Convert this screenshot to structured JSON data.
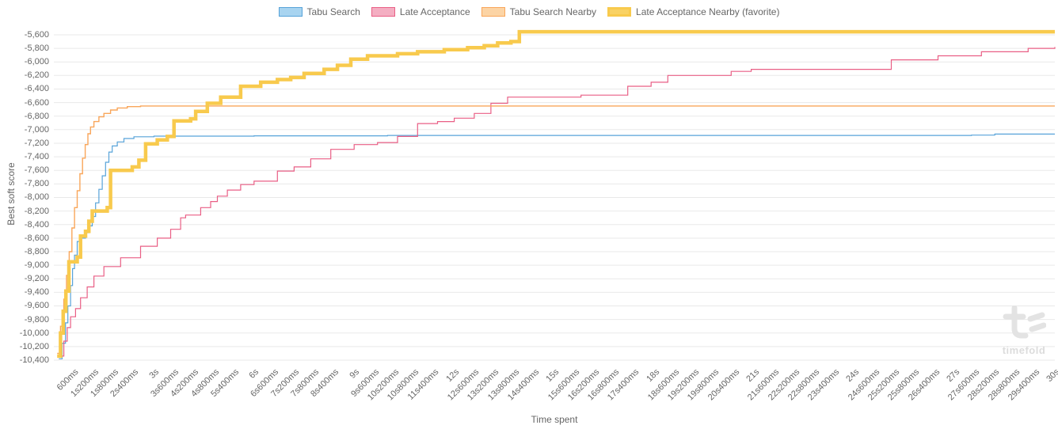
{
  "watermark": {
    "text": "timefold"
  },
  "chart_data": {
    "type": "line",
    "step": true,
    "title": "",
    "xlabel": "Time spent",
    "ylabel": "Best soft score",
    "legend_position": "top",
    "grid": true,
    "xlim_ms": [
      0,
      30000
    ],
    "ylim": [
      -10400,
      -5472
    ],
    "x_tick_interval_ms": 600,
    "x_tick_labels": [
      "600ms",
      "1s200ms",
      "1s800ms",
      "2s400ms",
      "3s",
      "3s600ms",
      "4s200ms",
      "4s800ms",
      "5s400ms",
      "6s",
      "6s600ms",
      "7s200ms",
      "7s800ms",
      "8s400ms",
      "9s",
      "9s600ms",
      "10s200ms",
      "10s800ms",
      "11s400ms",
      "12s",
      "12s600ms",
      "13s200ms",
      "13s800ms",
      "14s400ms",
      "15s",
      "15s600ms",
      "16s200ms",
      "16s800ms",
      "17s400ms",
      "18s",
      "18s600ms",
      "19s200ms",
      "19s800ms",
      "20s400ms",
      "21s",
      "21s600ms",
      "22s200ms",
      "22s800ms",
      "23s400ms",
      "24s",
      "24s600ms",
      "25s200ms",
      "25s800ms",
      "26s400ms",
      "27s",
      "27s600ms",
      "28s200ms",
      "28s800ms",
      "29s400ms",
      "30s"
    ],
    "y_ticks": [
      -5600,
      -5800,
      -6000,
      -6200,
      -6400,
      -6600,
      -6800,
      -7000,
      -7200,
      -7400,
      -7600,
      -7800,
      -8000,
      -8200,
      -8400,
      -8600,
      -8800,
      -9000,
      -9200,
      -9400,
      -9600,
      -9800,
      -10000,
      -10200,
      -10400
    ],
    "y_tick_labels": [
      "-5,600",
      "-5,800",
      "-6,000",
      "-6,200",
      "-6,400",
      "-6,600",
      "-6,800",
      "-7,000",
      "-7,200",
      "-7,400",
      "-7,600",
      "-7,800",
      "-8,000",
      "-8,200",
      "-8,400",
      "-8,600",
      "-8,800",
      "-9,000",
      "-9,200",
      "-9,400",
      "-9,600",
      "-9,800",
      "-10,000",
      "-10,200",
      "-10,400"
    ],
    "series": [
      {
        "name": "Tabu Search",
        "color": "#57a3d9",
        "legend_fill": "#a8d4f0",
        "width": 1.2,
        "points": [
          [
            150,
            -10380
          ],
          [
            250,
            -10150
          ],
          [
            350,
            -9850
          ],
          [
            420,
            -9600
          ],
          [
            500,
            -9300
          ],
          [
            560,
            -9050
          ],
          [
            620,
            -8850
          ],
          [
            700,
            -8650
          ],
          [
            800,
            -8600
          ],
          [
            950,
            -8520
          ],
          [
            1050,
            -8420
          ],
          [
            1150,
            -8280
          ],
          [
            1250,
            -8080
          ],
          [
            1350,
            -7880
          ],
          [
            1450,
            -7680
          ],
          [
            1550,
            -7480
          ],
          [
            1650,
            -7330
          ],
          [
            1750,
            -7240
          ],
          [
            1900,
            -7180
          ],
          [
            2100,
            -7130
          ],
          [
            2400,
            -7105
          ],
          [
            3000,
            -7095
          ],
          [
            6000,
            -7090
          ],
          [
            10000,
            -7085
          ],
          [
            27500,
            -7080
          ],
          [
            28200,
            -7065
          ],
          [
            30000,
            -7065
          ]
        ]
      },
      {
        "name": "Late Acceptance",
        "color": "#e95f85",
        "legend_fill": "#f4aec2",
        "width": 1.2,
        "points": [
          [
            150,
            -10340
          ],
          [
            300,
            -10120
          ],
          [
            400,
            -9920
          ],
          [
            500,
            -9760
          ],
          [
            650,
            -9640
          ],
          [
            800,
            -9480
          ],
          [
            1000,
            -9320
          ],
          [
            1200,
            -9160
          ],
          [
            1500,
            -9020
          ],
          [
            2000,
            -8890
          ],
          [
            2600,
            -8720
          ],
          [
            3100,
            -8600
          ],
          [
            3500,
            -8470
          ],
          [
            3800,
            -8300
          ],
          [
            3950,
            -8260
          ],
          [
            4400,
            -8150
          ],
          [
            4700,
            -8060
          ],
          [
            4900,
            -7980
          ],
          [
            5200,
            -7890
          ],
          [
            5600,
            -7810
          ],
          [
            6000,
            -7760
          ],
          [
            6700,
            -7610
          ],
          [
            7200,
            -7550
          ],
          [
            7700,
            -7430
          ],
          [
            8300,
            -7290
          ],
          [
            9000,
            -7220
          ],
          [
            9700,
            -7190
          ],
          [
            10300,
            -7100
          ],
          [
            10900,
            -6910
          ],
          [
            11500,
            -6880
          ],
          [
            12000,
            -6830
          ],
          [
            12600,
            -6760
          ],
          [
            13100,
            -6610
          ],
          [
            13600,
            -6520
          ],
          [
            15800,
            -6490
          ],
          [
            17200,
            -6360
          ],
          [
            17900,
            -6300
          ],
          [
            18400,
            -6200
          ],
          [
            20300,
            -6140
          ],
          [
            20900,
            -6110
          ],
          [
            25100,
            -5970
          ],
          [
            26500,
            -5910
          ],
          [
            27800,
            -5850
          ],
          [
            29200,
            -5800
          ],
          [
            30000,
            -5780
          ]
        ]
      },
      {
        "name": "Tabu Search Nearby",
        "color": "#f9a65a",
        "legend_fill": "#fcd4a5",
        "width": 1.4,
        "points": [
          [
            100,
            -10300
          ],
          [
            200,
            -9900
          ],
          [
            300,
            -9500
          ],
          [
            380,
            -9150
          ],
          [
            460,
            -8800
          ],
          [
            540,
            -8450
          ],
          [
            620,
            -8150
          ],
          [
            700,
            -7900
          ],
          [
            780,
            -7650
          ],
          [
            860,
            -7420
          ],
          [
            940,
            -7220
          ],
          [
            1020,
            -7060
          ],
          [
            1100,
            -6960
          ],
          [
            1200,
            -6880
          ],
          [
            1350,
            -6810
          ],
          [
            1500,
            -6760
          ],
          [
            1700,
            -6710
          ],
          [
            1900,
            -6680
          ],
          [
            2200,
            -6660
          ],
          [
            2600,
            -6650
          ],
          [
            30000,
            -6650
          ]
        ]
      },
      {
        "name": "Late Acceptance Nearby (favorite)",
        "color": "#f8ca4d",
        "legend_fill": "#f9d264",
        "width": 4.5,
        "points": [
          [
            100,
            -10340
          ],
          [
            200,
            -10000
          ],
          [
            280,
            -9680
          ],
          [
            360,
            -9380
          ],
          [
            450,
            -8950
          ],
          [
            700,
            -8880
          ],
          [
            800,
            -8570
          ],
          [
            950,
            -8500
          ],
          [
            1050,
            -8350
          ],
          [
            1150,
            -8200
          ],
          [
            1600,
            -8150
          ],
          [
            1700,
            -7600
          ],
          [
            2350,
            -7550
          ],
          [
            2550,
            -7450
          ],
          [
            2750,
            -7210
          ],
          [
            3100,
            -7150
          ],
          [
            3400,
            -7100
          ],
          [
            3600,
            -6870
          ],
          [
            4100,
            -6840
          ],
          [
            4250,
            -6730
          ],
          [
            4600,
            -6610
          ],
          [
            5000,
            -6520
          ],
          [
            5600,
            -6360
          ],
          [
            6200,
            -6300
          ],
          [
            6700,
            -6260
          ],
          [
            7100,
            -6230
          ],
          [
            7500,
            -6170
          ],
          [
            8100,
            -6110
          ],
          [
            8500,
            -6050
          ],
          [
            8900,
            -5960
          ],
          [
            9400,
            -5910
          ],
          [
            10300,
            -5880
          ],
          [
            10900,
            -5850
          ],
          [
            11700,
            -5820
          ],
          [
            12400,
            -5790
          ],
          [
            12900,
            -5760
          ],
          [
            13300,
            -5720
          ],
          [
            13700,
            -5700
          ],
          [
            13950,
            -5555
          ],
          [
            30000,
            -5555
          ]
        ]
      }
    ]
  }
}
